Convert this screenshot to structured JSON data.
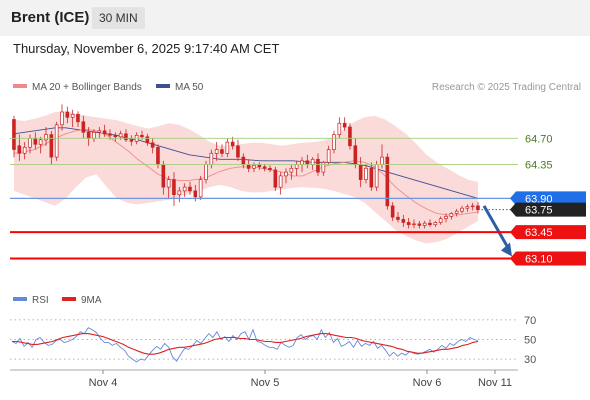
{
  "header": {
    "title": "Brent (ICE)",
    "timeframe": "30 MIN"
  },
  "timestamp": "Thursday, November 6, 2025 9:17:40 AM CET",
  "legend": {
    "bollinger": "MA 20 + Bollinger Bands",
    "ma50": "MA 50",
    "credit": "Research © 2025 Trading Central"
  },
  "indicator_legend": {
    "rsi": "RSI",
    "ma9": "9MA"
  },
  "colors": {
    "price": "#cc2222",
    "bollinger_fill": "#fbdada",
    "ma20": "#f08a8a",
    "ma50": "#3f4f8f",
    "resistance_line": "#a6cc7a",
    "current_line": "#6e96e0",
    "support_line": "#ff0000",
    "badge_blue": "#1e6fe8",
    "badge_dark": "#222222",
    "badge_red": "#ee1111",
    "arrow": "#2a5fa8",
    "rsi": "#6688d8",
    "rsi_ma": "#dd2222"
  },
  "chart_data": [
    {
      "type": "candlestick",
      "name": "Brent (ICE) 30 MIN",
      "x_ticks": [
        "Nov 4",
        "Nov 5",
        "Nov 6",
        "Nov 11"
      ],
      "ylim": [
        62.84,
        65.25
      ],
      "bars": [
        [
          64.95,
          65.0,
          64.45,
          64.55
        ],
        [
          64.6,
          64.75,
          64.4,
          64.5
        ],
        [
          64.5,
          64.65,
          64.42,
          64.58
        ],
        [
          64.58,
          64.75,
          64.5,
          64.7
        ],
        [
          64.7,
          64.78,
          64.55,
          64.62
        ],
        [
          64.62,
          64.72,
          64.5,
          64.68
        ],
        [
          64.68,
          64.85,
          64.6,
          64.75
        ],
        [
          64.75,
          64.8,
          64.35,
          64.45
        ],
        [
          64.45,
          64.92,
          64.4,
          64.88
        ],
        [
          64.88,
          65.15,
          64.8,
          65.05
        ],
        [
          65.05,
          65.12,
          64.9,
          64.98
        ],
        [
          64.98,
          65.08,
          64.85,
          65.02
        ],
        [
          65.02,
          65.06,
          64.85,
          64.92
        ],
        [
          64.92,
          65.0,
          64.7,
          64.78
        ],
        [
          64.78,
          64.85,
          64.6,
          64.7
        ],
        [
          64.7,
          64.82,
          64.65,
          64.78
        ],
        [
          64.78,
          64.85,
          64.7,
          64.8
        ],
        [
          64.8,
          64.88,
          64.72,
          64.76
        ],
        [
          64.76,
          64.82,
          64.68,
          64.74
        ],
        [
          64.74,
          64.78,
          64.66,
          64.72
        ],
        [
          64.72,
          64.8,
          64.68,
          64.76
        ],
        [
          64.76,
          64.82,
          64.65,
          64.68
        ],
        [
          64.68,
          64.74,
          64.6,
          64.66
        ],
        [
          64.66,
          64.78,
          64.62,
          64.74
        ],
        [
          64.74,
          64.8,
          64.68,
          64.72
        ],
        [
          64.72,
          64.76,
          64.6,
          64.64
        ],
        [
          64.64,
          64.7,
          64.5,
          64.58
        ],
        [
          64.58,
          64.62,
          64.3,
          64.35
        ],
        [
          64.35,
          64.4,
          63.95,
          64.05
        ],
        [
          64.05,
          64.2,
          63.9,
          64.15
        ],
        [
          64.15,
          64.25,
          63.8,
          63.95
        ],
        [
          63.95,
          64.05,
          63.85,
          64.0
        ],
        [
          64.0,
          64.1,
          63.92,
          64.05
        ],
        [
          64.05,
          64.12,
          63.95,
          64.0
        ],
        [
          64.0,
          64.08,
          63.86,
          63.92
        ],
        [
          63.92,
          64.2,
          63.88,
          64.15
        ],
        [
          64.15,
          64.4,
          64.1,
          64.35
        ],
        [
          64.35,
          64.55,
          64.3,
          64.5
        ],
        [
          64.5,
          64.65,
          64.4,
          64.55
        ],
        [
          64.55,
          64.62,
          64.45,
          64.5
        ],
        [
          64.5,
          64.7,
          64.45,
          64.65
        ],
        [
          64.65,
          64.72,
          64.55,
          64.6
        ],
        [
          64.6,
          64.68,
          64.4,
          64.45
        ],
        [
          64.45,
          64.5,
          64.3,
          64.35
        ],
        [
          64.35,
          64.42,
          64.25,
          64.3
        ],
        [
          64.3,
          64.38,
          64.25,
          64.34
        ],
        [
          64.34,
          64.38,
          64.28,
          64.32
        ],
        [
          64.32,
          64.36,
          64.26,
          64.3
        ],
        [
          64.3,
          64.34,
          64.25,
          64.28
        ],
        [
          64.28,
          64.32,
          64.0,
          64.05
        ],
        [
          64.05,
          64.25,
          63.95,
          64.2
        ],
        [
          64.2,
          64.3,
          64.1,
          64.25
        ],
        [
          64.25,
          64.35,
          64.15,
          64.3
        ],
        [
          64.3,
          64.4,
          64.2,
          64.35
        ],
        [
          64.35,
          64.45,
          64.25,
          64.4
        ],
        [
          64.4,
          64.48,
          64.3,
          64.35
        ],
        [
          64.35,
          64.45,
          64.28,
          64.42
        ],
        [
          64.42,
          64.5,
          64.2,
          64.25
        ],
        [
          64.25,
          64.4,
          64.2,
          64.38
        ],
        [
          64.38,
          64.6,
          64.35,
          64.55
        ],
        [
          64.55,
          64.8,
          64.5,
          64.75
        ],
        [
          64.75,
          64.98,
          64.7,
          64.9
        ],
        [
          64.9,
          64.98,
          64.8,
          64.85
        ],
        [
          64.85,
          64.9,
          64.55,
          64.6
        ],
        [
          64.6,
          64.7,
          64.3,
          64.35
        ],
        [
          64.35,
          64.45,
          64.05,
          64.15
        ],
        [
          64.15,
          64.35,
          64.1,
          64.3
        ],
        [
          64.3,
          64.38,
          64.0,
          64.05
        ],
        [
          64.05,
          64.4,
          64.0,
          64.35
        ],
        [
          64.35,
          64.62,
          64.3,
          64.45
        ],
        [
          64.45,
          64.5,
          63.75,
          63.8
        ],
        [
          63.8,
          63.85,
          63.6,
          63.65
        ],
        [
          63.65,
          63.72,
          63.58,
          63.62
        ],
        [
          63.62,
          63.68,
          63.52,
          63.58
        ],
        [
          63.58,
          63.64,
          63.5,
          63.55
        ],
        [
          63.55,
          63.62,
          63.5,
          63.56
        ],
        [
          63.56,
          63.6,
          63.5,
          63.54
        ],
        [
          63.54,
          63.6,
          63.5,
          63.57
        ],
        [
          63.57,
          63.62,
          63.52,
          63.55
        ],
        [
          63.55,
          63.6,
          63.52,
          63.58
        ],
        [
          63.58,
          63.66,
          63.55,
          63.63
        ],
        [
          63.63,
          63.7,
          63.58,
          63.66
        ],
        [
          63.66,
          63.72,
          63.62,
          63.7
        ],
        [
          63.7,
          63.76,
          63.66,
          63.73
        ],
        [
          63.73,
          63.8,
          63.7,
          63.77
        ],
        [
          63.77,
          63.82,
          63.72,
          63.79
        ],
        [
          63.79,
          63.84,
          63.74,
          63.8
        ],
        [
          63.8,
          63.85,
          63.7,
          63.75
        ]
      ],
      "bollinger_upper": [
        64.95,
        64.93,
        64.96,
        65.0,
        65.05,
        65.06,
        65.03,
        65.0,
        64.98,
        64.96,
        64.94,
        64.9,
        64.86,
        64.83,
        64.86,
        64.9,
        64.88,
        64.82,
        64.74,
        64.65,
        64.6,
        64.6,
        64.62,
        64.64,
        64.64,
        64.62,
        64.6,
        64.62,
        64.64,
        64.65,
        64.67,
        64.72,
        64.82,
        64.92,
        64.98,
        65.0,
        64.95,
        64.86,
        64.76,
        64.63,
        64.48,
        64.38,
        64.3,
        64.22,
        64.15,
        64.12
      ],
      "bollinger_lower": [
        64.0,
        63.95,
        63.9,
        63.85,
        63.8,
        63.9,
        64.05,
        64.18,
        64.22,
        64.05,
        63.9,
        63.84,
        63.82,
        63.84,
        63.86,
        63.88,
        63.92,
        63.96,
        64.0,
        64.05,
        64.08,
        64.05,
        64.0,
        63.98,
        63.98,
        64.0,
        64.02,
        64.04,
        64.05,
        64.04,
        64.03,
        64.0,
        63.96,
        63.92,
        63.84,
        63.72,
        63.6,
        63.48,
        63.4,
        63.34,
        63.3,
        63.32,
        63.36,
        63.44,
        63.52,
        63.6
      ],
      "ma20": [
        64.5,
        64.52,
        64.55,
        64.62,
        64.7,
        64.76,
        64.8,
        64.82,
        64.8,
        64.74,
        64.64,
        64.54,
        64.42,
        64.32,
        64.22,
        64.16,
        64.14,
        64.14,
        64.16,
        64.2,
        64.26,
        64.3,
        64.32,
        64.32,
        64.3,
        64.28,
        64.25,
        64.2,
        64.2,
        64.26,
        64.32,
        64.36,
        64.38,
        64.4,
        64.38,
        64.32,
        64.2,
        64.05,
        63.94,
        63.84,
        63.76,
        63.7,
        63.68,
        63.68,
        63.7,
        63.72
      ],
      "ma50": [
        64.76,
        64.78,
        64.8,
        64.82,
        64.84,
        64.84,
        64.82,
        64.8,
        64.78,
        64.76,
        64.74,
        64.7,
        64.68,
        64.64,
        64.6,
        64.56,
        64.52,
        64.48,
        64.46,
        64.44,
        64.42,
        64.42,
        64.42,
        64.41,
        64.4,
        64.4,
        64.4,
        64.4,
        64.39,
        64.38,
        64.38,
        64.38,
        64.38,
        64.36,
        64.34,
        64.3,
        64.26,
        64.22,
        64.18,
        64.14,
        64.1,
        64.06,
        64.02,
        63.98,
        63.94,
        63.9
      ],
      "ma20_start_index": 2,
      "levels": [
        {
          "value": 64.7,
          "label": "64.70",
          "kind": "resistance"
        },
        {
          "value": 64.35,
          "label": "64.35",
          "kind": "resistance"
        },
        {
          "value": 63.9,
          "label": "63.90",
          "kind": "current"
        },
        {
          "value": 63.75,
          "label": "63.75",
          "kind": "last"
        },
        {
          "value": 63.45,
          "label": "63.45",
          "kind": "support"
        },
        {
          "value": 63.1,
          "label": "63.10",
          "kind": "support"
        }
      ],
      "projection": {
        "from_index": 87,
        "from": 63.8,
        "to": 63.1
      }
    },
    {
      "type": "line",
      "name": "RSI",
      "ylim": [
        25,
        75
      ],
      "y_ticks": [
        70,
        50,
        30
      ],
      "series": [
        {
          "name": "RSI",
          "values": [
            48,
            46,
            51,
            43,
            47,
            42,
            50,
            52,
            47,
            44,
            45,
            49,
            50,
            47,
            48,
            50,
            53,
            58,
            56,
            62,
            60,
            57,
            51,
            47,
            47,
            44,
            46,
            42,
            39,
            33,
            30,
            27,
            30,
            29,
            34,
            39,
            43,
            40,
            46,
            42,
            32,
            28,
            35,
            41,
            40,
            44,
            49,
            46,
            51,
            56,
            52,
            58,
            50,
            53,
            48,
            54,
            50,
            56,
            58,
            50,
            60,
            48,
            47,
            44,
            42,
            42,
            40,
            47,
            44,
            42,
            44,
            52,
            55,
            50,
            53,
            54,
            50,
            60,
            52,
            57,
            47,
            51,
            43,
            45,
            48,
            42,
            49,
            43,
            46,
            44,
            48,
            41,
            44,
            39,
            33,
            37,
            33,
            36,
            34,
            38,
            36,
            35,
            36,
            38,
            40,
            37,
            40,
            44,
            41,
            46,
            44,
            48,
            50,
            48,
            52,
            50,
            49
          ]
        },
        {
          "name": "9MA",
          "values": [
            48,
            48,
            47,
            46,
            45,
            45,
            46,
            47,
            48,
            50,
            52,
            53,
            54,
            55,
            56,
            56,
            55,
            54,
            53,
            51,
            49,
            47,
            45,
            42,
            40,
            38,
            36,
            35,
            35,
            36,
            38,
            40,
            41,
            42,
            42,
            43,
            44,
            45,
            46,
            48,
            50,
            51,
            52,
            52,
            52,
            51,
            51,
            50,
            50,
            49,
            48,
            48,
            47,
            47,
            48,
            49,
            50,
            51,
            53,
            54,
            55,
            56,
            56,
            55,
            54,
            53,
            52,
            52,
            51,
            49,
            48,
            47,
            46,
            45,
            44,
            43,
            41,
            40,
            38,
            37,
            36,
            36,
            37,
            38,
            39,
            40,
            40,
            41,
            42,
            44,
            45,
            47,
            48
          ]
        }
      ]
    }
  ]
}
